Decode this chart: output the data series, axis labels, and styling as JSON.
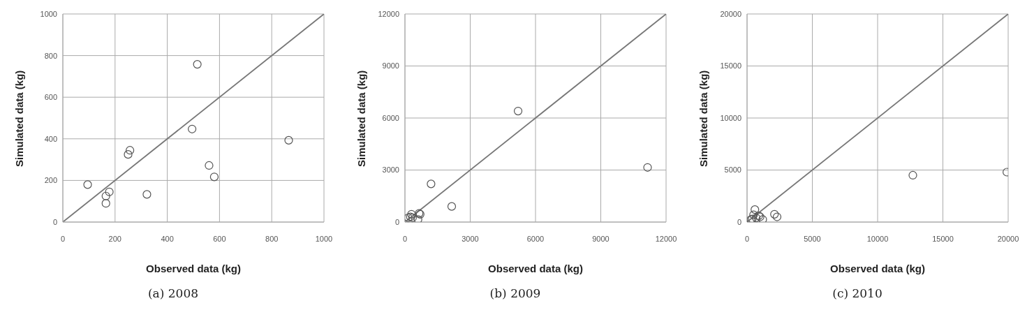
{
  "chart_data": [
    {
      "type": "scatter",
      "title": "(a)  2008",
      "xlabel": "Observed data (kg)",
      "ylabel": "Simulated data (kg)",
      "xlim": [
        0,
        1000
      ],
      "ylim": [
        0,
        1000
      ],
      "xticks": [
        0,
        200,
        400,
        600,
        800,
        1000
      ],
      "yticks": [
        0,
        200,
        400,
        600,
        800,
        1000
      ],
      "grid": true,
      "series": [
        {
          "marker": "circle",
          "color": "#555555",
          "x": [
            95,
            165,
            165,
            178,
            250,
            257,
            322,
            495,
            515,
            560,
            580,
            865
          ],
          "values": [
            180,
            90,
            125,
            145,
            325,
            345,
            133,
            447,
            758,
            272,
            217,
            393
          ]
        },
        {
          "type": "line",
          "marker": "none",
          "color": "#777777",
          "x": [
            0,
            1000
          ],
          "values": [
            0,
            1000
          ]
        }
      ]
    },
    {
      "type": "scatter",
      "title": "(b)  2009",
      "xlabel": "Observed data (kg)",
      "ylabel": "Simulated data (kg)",
      "xlim": [
        0,
        12000
      ],
      "ylim": [
        0,
        12000
      ],
      "xticks": [
        0,
        3000,
        6000,
        9000,
        12000
      ],
      "yticks": [
        0,
        3000,
        6000,
        9000,
        12000
      ],
      "grid": true,
      "series": [
        {
          "marker": "circle",
          "color": "#555555",
          "x": [
            150,
            250,
            300,
            350,
            600,
            650,
            700,
            1200,
            2150,
            5200,
            11150
          ],
          "values": [
            250,
            300,
            450,
            250,
            150,
            500,
            450,
            2200,
            900,
            6400,
            3150
          ]
        },
        {
          "type": "line",
          "marker": "none",
          "color": "#777777",
          "x": [
            0,
            12000
          ],
          "values": [
            0,
            12000
          ]
        }
      ]
    },
    {
      "type": "scatter",
      "title": "(c)  2010",
      "xlabel": "Observed data (kg)",
      "ylabel": "Simulated data (kg)",
      "xlim": [
        0,
        20000
      ],
      "ylim": [
        0,
        20000
      ],
      "xticks": [
        0,
        5000,
        10000,
        15000,
        20000
      ],
      "yticks": [
        0,
        5000,
        10000,
        15000,
        20000
      ],
      "grid": true,
      "series": [
        {
          "marker": "circle",
          "color": "#555555",
          "x": [
            300,
            400,
            500,
            600,
            700,
            900,
            1000,
            1200,
            2100,
            2300,
            12700,
            19900
          ],
          "values": [
            250,
            300,
            700,
            1200,
            400,
            600,
            500,
            250,
            750,
            500,
            4500,
            4800
          ]
        },
        {
          "type": "line",
          "marker": "none",
          "color": "#777777",
          "x": [
            0,
            20000
          ],
          "values": [
            0,
            20000
          ]
        }
      ]
    }
  ]
}
